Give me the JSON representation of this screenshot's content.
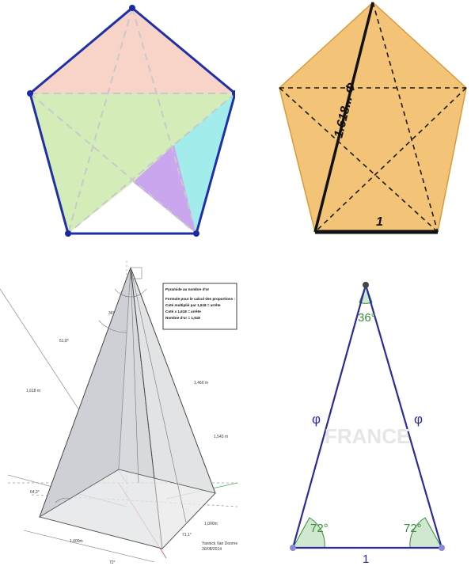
{
  "golden_pentagon": {
    "diagonal_label": "1.618... Φ",
    "side_label": "1"
  },
  "pyramid": {
    "info_box": {
      "title": "Pyramide au nombre d'or",
      "line1": "Formule pour le calcul des proportions :",
      "line2": "Coté multiplié par 1,618 = arrête",
      "line3": "Coté x 1,618 = arrête",
      "line4": "Nombre d'or = 1,618"
    },
    "labels": {
      "apex_angle": "36°",
      "slope_angle": "51,8°",
      "edge_length": "1,618 m",
      "height_1": "1,460 m",
      "height_2": "1,543 m",
      "base_angle_left": "64,2°",
      "base_side": "1,000m",
      "base_side_right": "1,000m",
      "corner_angle": "71,1°",
      "bottom_angle": "72°",
      "author": "Yannick Van Doorne",
      "date": "30/08/2014"
    }
  },
  "golden_triangle": {
    "apex_angle": "36°",
    "left_side": "φ",
    "right_side": "φ",
    "left_base_angle": "72°",
    "right_base_angle": "72°",
    "base": "1",
    "watermark": "FRANCE"
  },
  "colors": {
    "pentagon_stroke": "#1f2fa6",
    "vertex": "#1a2aa0",
    "pink_region": "#f8d3c8",
    "green_region": "#d4edb8",
    "cyan_region": "#a3ecec",
    "purple_region": "#c9a6ee",
    "parchment": "#f3c477",
    "triangle_stroke": "#2b2b9a",
    "angle_green": "#3b8c3b",
    "arc_fill": "#cfe8cf"
  }
}
